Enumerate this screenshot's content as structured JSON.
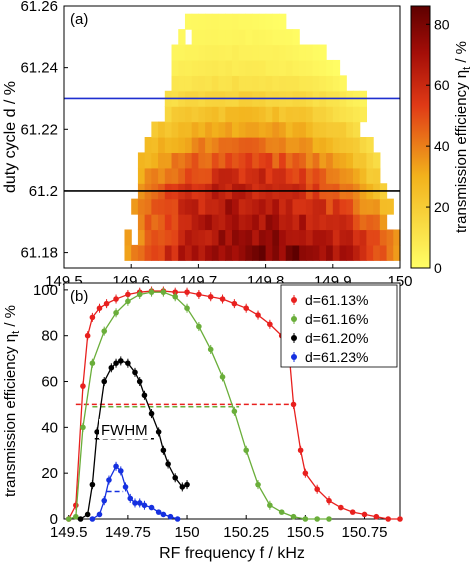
{
  "colors": {
    "heat_low": "#ffff66",
    "heat_mid": "#e03a16",
    "heat_high": "#5e0000",
    "line_blue": "#1f2fd0",
    "line_black": "#000000",
    "s_red": "#e8201e",
    "s_green": "#6aae3a",
    "s_black": "#000000",
    "s_blue": "#1530e0"
  },
  "chart_data": [
    {
      "type": "heatmap",
      "panel_label": "(a)",
      "xlabel": "",
      "ylabel": "duty cycle d / %",
      "xlim": [
        149.5,
        150.0
      ],
      "ylim": [
        61.175,
        61.26
      ],
      "x_ticks": [
        "149.5",
        "149.6",
        "149.7",
        "149.8",
        "149.9",
        "150"
      ],
      "x_tick_values": [
        149.5,
        149.6,
        149.7,
        149.8,
        149.9,
        150.0
      ],
      "y_ticks": [
        "61.18",
        "61.2",
        "61.22",
        "61.24",
        "61.26"
      ],
      "y_tick_values": [
        61.18,
        61.2,
        61.22,
        61.24,
        61.26
      ],
      "colorbar": {
        "label": "transmission efficiency η",
        "label_sub": "t",
        "label_unit": " / %",
        "range": [
          0,
          86
        ],
        "ticks": [
          "0",
          "20",
          "40",
          "60",
          "80"
        ],
        "tick_values": [
          0,
          20,
          40,
          60,
          80
        ]
      },
      "hlines": [
        {
          "y": 61.23,
          "color": "blue"
        },
        {
          "y": 61.2,
          "color": "black"
        }
      ],
      "rows": [
        {
          "d": 61.18,
          "x_start": 149.59,
          "x_end": 149.995,
          "peak": 80,
          "center": 149.8
        },
        {
          "d": 61.185,
          "x_start": 149.595,
          "x_end": 149.995,
          "peak": 76,
          "center": 149.8
        },
        {
          "d": 61.19,
          "x_start": 149.6,
          "x_end": 149.99,
          "peak": 72,
          "center": 149.79
        },
        {
          "d": 61.195,
          "x_start": 149.605,
          "x_end": 149.985,
          "peak": 68,
          "center": 149.78
        },
        {
          "d": 61.2,
          "x_start": 149.61,
          "x_end": 149.98,
          "peak": 64,
          "center": 149.77
        },
        {
          "d": 61.205,
          "x_start": 149.62,
          "x_end": 149.97,
          "peak": 58,
          "center": 149.77
        },
        {
          "d": 61.21,
          "x_start": 149.625,
          "x_end": 149.97,
          "peak": 50,
          "center": 149.77
        },
        {
          "d": 61.215,
          "x_start": 149.63,
          "x_end": 149.96,
          "peak": 42,
          "center": 149.77
        },
        {
          "d": 61.22,
          "x_start": 149.635,
          "x_end": 149.955,
          "peak": 34,
          "center": 149.77
        },
        {
          "d": 61.225,
          "x_start": 149.64,
          "x_end": 149.945,
          "peak": 26,
          "center": 149.77
        },
        {
          "d": 61.23,
          "x_start": 149.645,
          "x_end": 149.94,
          "peak": 18,
          "center": 149.77
        },
        {
          "d": 61.235,
          "x_start": 149.655,
          "x_end": 149.93,
          "peak": 12,
          "center": 149.76
        },
        {
          "d": 61.24,
          "x_start": 149.665,
          "x_end": 149.91,
          "peak": 8,
          "center": 149.75
        },
        {
          "d": 61.245,
          "x_start": 149.67,
          "x_end": 149.89,
          "peak": 6,
          "center": 149.75
        },
        {
          "d": 61.25,
          "x_start": 149.675,
          "x_end": 149.86,
          "peak": 4,
          "center": 149.74
        },
        {
          "d": 61.255,
          "x_start": 149.68,
          "x_end": 149.83,
          "peak": 3,
          "center": 149.73
        }
      ]
    },
    {
      "type": "line",
      "panel_label": "(b)",
      "xlabel": "RF frequency f / kHz",
      "ylabel": "transmission efficiency η",
      "ylabel_sub": "t",
      "ylabel_unit": " / %",
      "xlim": [
        149.48,
        150.9
      ],
      "ylim": [
        0,
        103
      ],
      "x_ticks": [
        "149.5",
        "149.75",
        "150",
        "150.25",
        "150.5",
        "150.75"
      ],
      "x_tick_values": [
        149.5,
        149.75,
        150.0,
        150.25,
        150.5,
        150.75
      ],
      "y_ticks": [
        "0",
        "20",
        "40",
        "60",
        "80",
        "100"
      ],
      "y_tick_values": [
        0,
        20,
        40,
        60,
        80,
        100
      ],
      "legend_position": "top-right",
      "annotation": "FWHM",
      "series": [
        {
          "name": "d=61.13%",
          "color": "red",
          "x": [
            149.5,
            149.53,
            149.56,
            149.58,
            149.6,
            149.63,
            149.66,
            149.7,
            149.75,
            149.8,
            149.85,
            149.9,
            149.95,
            150.0,
            150.05,
            150.1,
            150.15,
            150.2,
            150.25,
            150.3,
            150.35,
            150.4,
            150.43,
            150.45,
            150.48,
            150.5,
            150.55,
            150.6,
            150.65,
            150.7,
            150.75,
            150.8,
            150.85,
            150.9
          ],
          "y": [
            0,
            6,
            58,
            80,
            88,
            92,
            94,
            96,
            98,
            99,
            99.5,
            99.5,
            99,
            99,
            98,
            97,
            96,
            94,
            92,
            89,
            85,
            80,
            74,
            50,
            30,
            20,
            13,
            8,
            5,
            3,
            2,
            1,
            0,
            0
          ],
          "fwhm": [
            149.53,
            150.45,
            50
          ]
        },
        {
          "name": "d=61.16%",
          "color": "green",
          "x": [
            149.5,
            149.53,
            149.56,
            149.6,
            149.65,
            149.7,
            149.75,
            149.8,
            149.85,
            149.9,
            149.95,
            150.0,
            150.05,
            150.1,
            150.15,
            150.2,
            150.25,
            150.3,
            150.35,
            150.4,
            150.45,
            150.5,
            150.55,
            150.6
          ],
          "y": [
            0,
            1,
            40,
            68,
            82,
            90,
            95,
            98,
            99,
            99,
            97,
            92,
            84,
            74,
            62,
            47,
            30,
            15,
            6,
            3,
            1,
            0,
            0,
            0
          ],
          "fwhm": [
            149.6,
            150.22,
            49
          ]
        },
        {
          "name": "d=61.20%",
          "color": "black",
          "x": [
            149.55,
            149.58,
            149.6,
            149.62,
            149.65,
            149.68,
            149.7,
            149.72,
            149.75,
            149.78,
            149.8,
            149.82,
            149.85,
            149.88,
            149.9,
            149.92,
            149.95,
            149.98,
            150.0
          ],
          "y": [
            0,
            2,
            15,
            38,
            60,
            66,
            68,
            69,
            68,
            64,
            60,
            54,
            46,
            38,
            30,
            24,
            18,
            14,
            15
          ],
          "fwhm": [
            149.61,
            149.86,
            35
          ]
        },
        {
          "name": "d=61.23%",
          "color": "blue",
          "x": [
            149.6,
            149.63,
            149.65,
            149.67,
            149.7,
            149.72,
            149.74,
            149.76,
            149.78,
            149.8,
            149.82,
            149.85,
            149.88,
            149.9,
            149.93,
            149.96
          ],
          "y": [
            0,
            2,
            8,
            17,
            23,
            21,
            14,
            9,
            7,
            7,
            6,
            5,
            3,
            2,
            1,
            0
          ],
          "fwhm": [
            149.66,
            149.73,
            12
          ]
        }
      ]
    }
  ]
}
